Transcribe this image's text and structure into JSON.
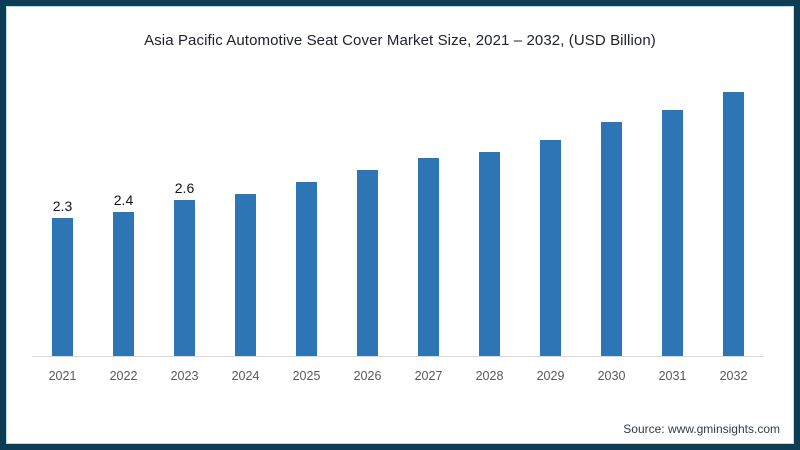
{
  "frame": {
    "border_color": "#0d3d54",
    "background": "#ffffff"
  },
  "chart_data": {
    "type": "bar",
    "title": "Asia Pacific Automotive Seat Cover Market Size, 2021 – 2032, (USD Billion)",
    "categories": [
      "2021",
      "2022",
      "2023",
      "2024",
      "2025",
      "2026",
      "2027",
      "2028",
      "2029",
      "2030",
      "2031",
      "2032"
    ],
    "values": [
      2.3,
      2.4,
      2.6,
      2.7,
      2.9,
      3.1,
      3.3,
      3.4,
      3.6,
      3.9,
      4.1,
      4.4
    ],
    "data_labels": [
      "2.3",
      "2.4",
      "2.6",
      "",
      "",
      "",
      "",
      "",
      "",
      "",
      "",
      ""
    ],
    "xlabel": "",
    "ylabel": "",
    "ylim": [
      0,
      4.8
    ],
    "grid": false,
    "legend": false,
    "bar_color": "#2e75b6",
    "axis_line_color": "#d9d9d9",
    "tick_label_color": "#595959",
    "data_label_color": "#151515",
    "title_color": "#20222e"
  },
  "source": {
    "label": "Source: www.gminsights.com"
  }
}
